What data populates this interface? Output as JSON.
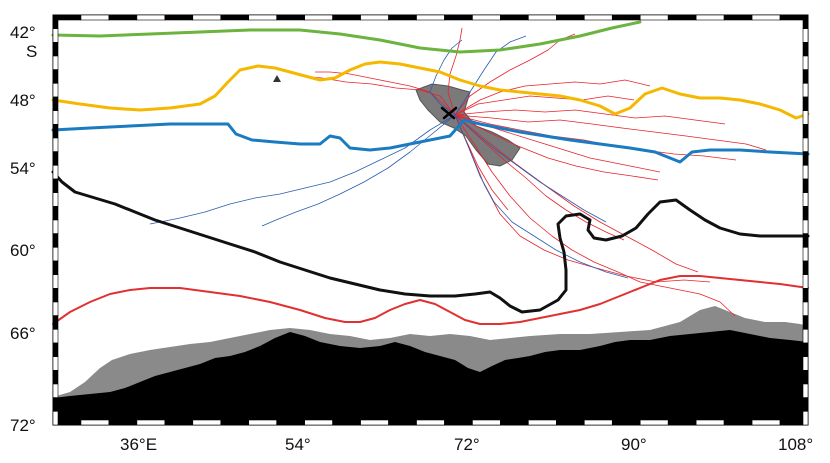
{
  "map": {
    "latitude_labels": [
      "42°",
      "S",
      "48°",
      "54°",
      "60°",
      "66°",
      "72°"
    ],
    "longitude_labels": [
      "36°E",
      "54°",
      "72°",
      "90°",
      "108°"
    ],
    "colors": {
      "front_green": "#6cb33f",
      "front_orange": "#f5b800",
      "front_blue": "#1a7bc1",
      "front_black": "#111111",
      "front_red": "#e03030",
      "tracks_red": "#e8222a",
      "tracks_blue": "#2a5db0",
      "plateau_gray": "#7a7a7a",
      "antarctica_ice_shelf": "#8a8a8a",
      "antarctica_land": "#000000",
      "frame": "#000000"
    }
  }
}
